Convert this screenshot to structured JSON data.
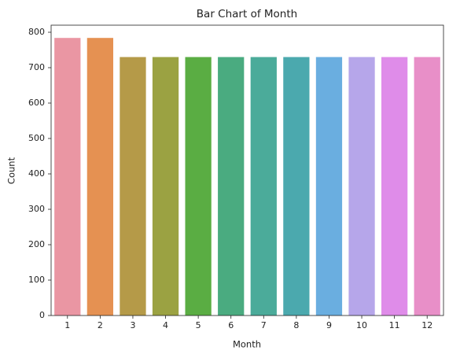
{
  "chart_data": {
    "type": "bar",
    "title": "Bar Chart of Month",
    "x_label": "Month",
    "y_label": "Count",
    "categories": [
      "1",
      "2",
      "3",
      "4",
      "5",
      "6",
      "7",
      "8",
      "9",
      "10",
      "11",
      "12"
    ],
    "values": [
      784,
      784,
      730,
      730,
      730,
      730,
      730,
      730,
      730,
      730,
      730,
      730
    ],
    "colors": [
      "#ea96a3",
      "#e59152",
      "#b59a48",
      "#9ba242",
      "#5aad43",
      "#4aab80",
      "#4bab9a",
      "#4ba9ae",
      "#6aaee0",
      "#b6a6ea",
      "#df8ce9",
      "#e88fc8"
    ],
    "ylim": [
      0,
      820
    ],
    "yticks": [
      0,
      100,
      200,
      300,
      400,
      500,
      600,
      700,
      800
    ],
    "grid": false
  }
}
